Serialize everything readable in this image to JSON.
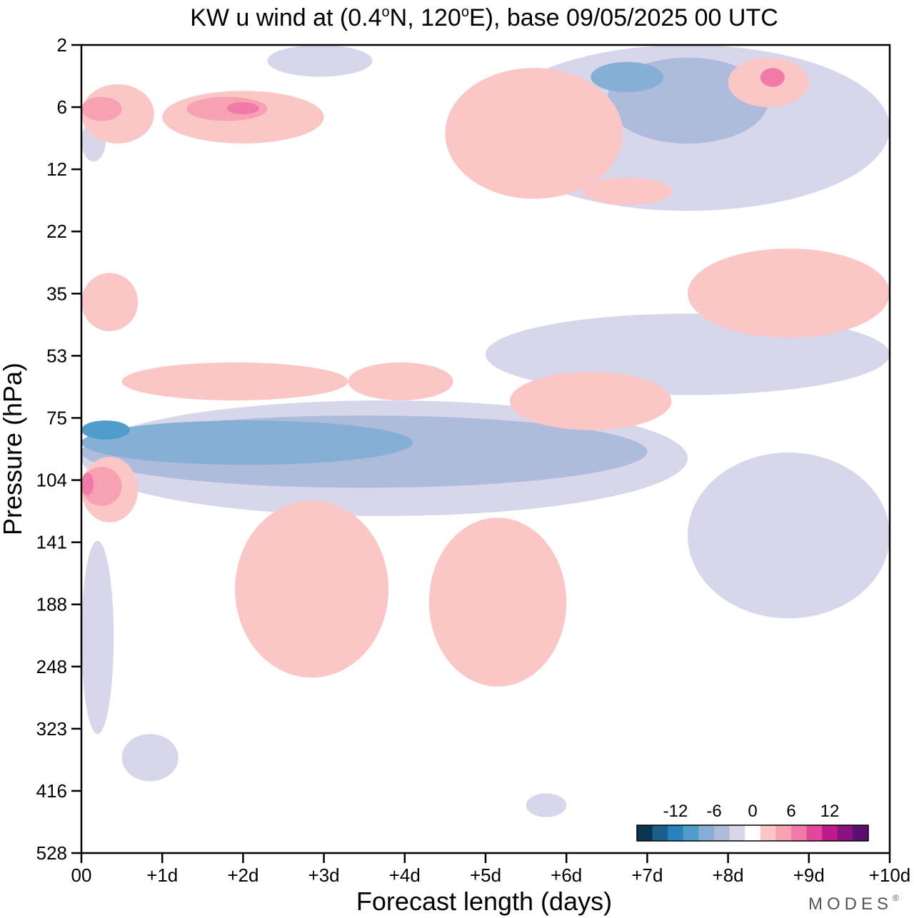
{
  "chart_data": {
    "type": "heatmap",
    "title": "KW u wind at (0.4°N, 120°E),  base 09/05/2025  00 UTC",
    "title_parts": {
      "prefix": "KW u wind at (0.4",
      "deg1": "o",
      "middle": "N, 120",
      "deg2": "o",
      "suffix": "E),  base 09/05/2025  00 UTC"
    },
    "xlabel": "Forecast length (days)",
    "ylabel": "Pressure (hPa)",
    "x_ticks": [
      "00",
      "+1d",
      "+2d",
      "+3d",
      "+4d",
      "+5d",
      "+6d",
      "+7d",
      "+8d",
      "+9d",
      "+10d"
    ],
    "xlim": [
      0,
      10
    ],
    "y_ticks": [
      "2",
      "6",
      "12",
      "22",
      "35",
      "53",
      "75",
      "104",
      "141",
      "188",
      "248",
      "323",
      "416",
      "528"
    ],
    "ylim": [
      2,
      528
    ],
    "y_axis_inverted": true,
    "colorbar": {
      "labels": [
        "-12",
        "-6",
        "0",
        "6",
        "12"
      ],
      "range": [
        -18,
        18
      ],
      "colors": [
        "#0a3550",
        "#185f8c",
        "#2a82ba",
        "#4f9dcb",
        "#86afd6",
        "#aebbdb",
        "#d7d6ea",
        "#ffffff",
        "#fbc6c6",
        "#f6a2b3",
        "#f07aa8",
        "#e2479d",
        "#be1a8c",
        "#8b1080",
        "#5c0f6f"
      ]
    },
    "brand": "MODES",
    "brand_mark": "®",
    "regions": [
      {
        "band": "pink",
        "level": 1,
        "days": [
          0.0,
          0.9
        ],
        "hpa": [
          4,
          9
        ],
        "value": 4
      },
      {
        "band": "pink",
        "level": 2,
        "days": [
          0.0,
          0.5
        ],
        "hpa": [
          5,
          7
        ],
        "value": 7
      },
      {
        "band": "pink",
        "level": 1,
        "days": [
          1.0,
          3.0
        ],
        "hpa": [
          4.5,
          9
        ],
        "value": 4
      },
      {
        "band": "pink",
        "level": 2,
        "days": [
          1.3,
          2.3
        ],
        "hpa": [
          5,
          7
        ],
        "value": 7
      },
      {
        "band": "pink",
        "level": 3,
        "days": [
          1.8,
          2.2
        ],
        "hpa": [
          5.5,
          6.5
        ],
        "value": 10
      },
      {
        "band": "pink",
        "level": 1,
        "days": [
          0.0,
          0.7
        ],
        "hpa": [
          30,
          45
        ],
        "value": 3
      },
      {
        "band": "pink",
        "level": 1,
        "days": [
          4.5,
          6.7
        ],
        "hpa": [
          3,
          16
        ],
        "value": 3
      },
      {
        "band": "pink",
        "level": 1,
        "days": [
          8.0,
          9.0
        ],
        "hpa": [
          2.5,
          6
        ],
        "value": 4
      },
      {
        "band": "pink",
        "level": 3,
        "days": [
          8.4,
          8.7
        ],
        "hpa": [
          3,
          4.2
        ],
        "value": 10
      },
      {
        "band": "pink",
        "level": 1,
        "days": [
          7.5,
          10.0
        ],
        "hpa": [
          25,
          47
        ],
        "value": 3
      },
      {
        "band": "pink",
        "level": 1,
        "days": [
          0.5,
          3.3
        ],
        "hpa": [
          55,
          68
        ],
        "value": 2
      },
      {
        "band": "pink",
        "level": 1,
        "days": [
          3.3,
          4.6
        ],
        "hpa": [
          55,
          68
        ],
        "value": 2
      },
      {
        "band": "pink",
        "level": 1,
        "days": [
          5.3,
          7.3
        ],
        "hpa": [
          58,
          80
        ],
        "value": 3
      },
      {
        "band": "pink",
        "level": 1,
        "days": [
          6.2,
          7.3
        ],
        "hpa": [
          13,
          17
        ],
        "value": 2
      },
      {
        "band": "pink",
        "level": 1,
        "days": [
          0.0,
          0.7
        ],
        "hpa": [
          92,
          128
        ],
        "value": 5
      },
      {
        "band": "pink",
        "level": 2,
        "days": [
          0.0,
          0.5
        ],
        "hpa": [
          97,
          118
        ],
        "value": 8
      },
      {
        "band": "pink",
        "level": 3,
        "days": [
          0.0,
          0.15
        ],
        "hpa": [
          100,
          112
        ],
        "value": 11
      },
      {
        "band": "pink",
        "level": 1,
        "days": [
          1.9,
          3.8
        ],
        "hpa": [
          115,
          260
        ],
        "value": 3
      },
      {
        "band": "pink",
        "level": 1,
        "days": [
          4.3,
          6.0
        ],
        "hpa": [
          125,
          270
        ],
        "value": 3
      },
      {
        "band": "blue",
        "level": 1,
        "days": [
          0.0,
          7.5
        ],
        "hpa": [
          68,
          124
        ],
        "value": -3
      },
      {
        "band": "blue",
        "level": 2,
        "days": [
          0.0,
          7.0
        ],
        "hpa": [
          74,
          108
        ],
        "value": -6
      },
      {
        "band": "blue",
        "level": 3,
        "days": [
          0.0,
          4.1
        ],
        "hpa": [
          76,
          96
        ],
        "value": -9
      },
      {
        "band": "blue",
        "level": 4,
        "days": [
          0.0,
          0.6
        ],
        "hpa": [
          76,
          84
        ],
        "value": -12
      },
      {
        "band": "blue",
        "level": 1,
        "days": [
          5.0,
          10.0
        ],
        "hpa": [
          2,
          18
        ],
        "value": -3
      },
      {
        "band": "blue",
        "level": 2,
        "days": [
          6.5,
          8.5
        ],
        "hpa": [
          2.5,
          9
        ],
        "value": -6
      },
      {
        "band": "blue",
        "level": 3,
        "days": [
          6.3,
          7.2
        ],
        "hpa": [
          2.7,
          4.6
        ],
        "value": -9
      },
      {
        "band": "blue",
        "level": 1,
        "days": [
          5.0,
          10.0
        ],
        "hpa": [
          40,
          66
        ],
        "value": -3
      },
      {
        "band": "blue",
        "level": 1,
        "days": [
          7.5,
          10.0
        ],
        "hpa": [
          90,
          200
        ],
        "value": -3
      },
      {
        "band": "blue",
        "level": 1,
        "days": [
          0.0,
          0.4
        ],
        "hpa": [
          140,
          330
        ],
        "value": -3
      },
      {
        "band": "blue",
        "level": 1,
        "days": [
          0.5,
          1.2
        ],
        "hpa": [
          330,
          400
        ],
        "value": -3
      },
      {
        "band": "blue",
        "level": 1,
        "days": [
          5.5,
          6.0
        ],
        "hpa": [
          420,
          460
        ],
        "value": -3
      },
      {
        "band": "blue",
        "level": 1,
        "days": [
          2.3,
          3.6
        ],
        "hpa": [
          2,
          3.5
        ],
        "value": -3
      },
      {
        "band": "blue",
        "level": 1,
        "days": [
          0.0,
          0.3
        ],
        "hpa": [
          7,
          11
        ],
        "value": -4
      }
    ]
  }
}
